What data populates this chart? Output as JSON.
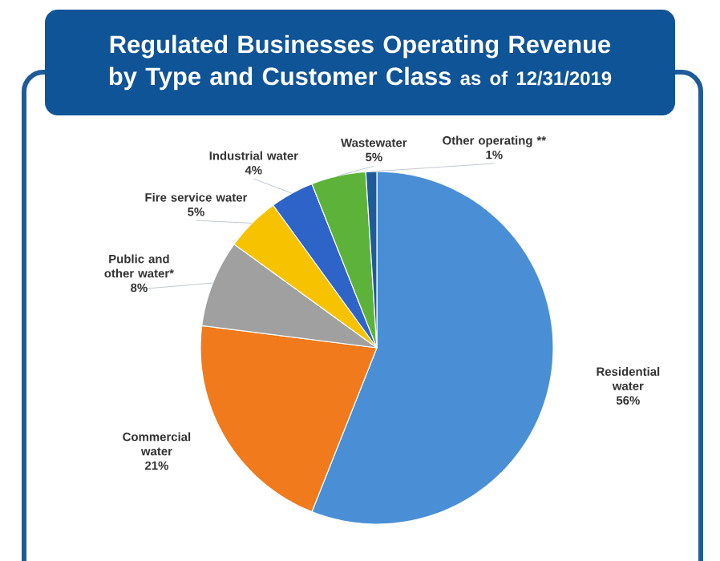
{
  "chart_data": {
    "type": "pie",
    "title": "Regulated Businesses Operating Revenue by Type and Customer Class",
    "subtitle": "as of 12/31/2019",
    "categories": [
      "Residential water",
      "Commercial water",
      "Public and other water*",
      "Fire service water",
      "Industrial water",
      "Wastewater",
      "Other operating **"
    ],
    "values": [
      56,
      21,
      8,
      5,
      4,
      5,
      1
    ],
    "value_labels": [
      "56%",
      "21%",
      "8%",
      "5%",
      "4%",
      "5%",
      "1%"
    ],
    "colors": [
      "#4a8fd6",
      "#f07a1c",
      "#a0a0a0",
      "#f7c300",
      "#2e63c8",
      "#5db33a",
      "#1f5b99"
    ]
  }
}
